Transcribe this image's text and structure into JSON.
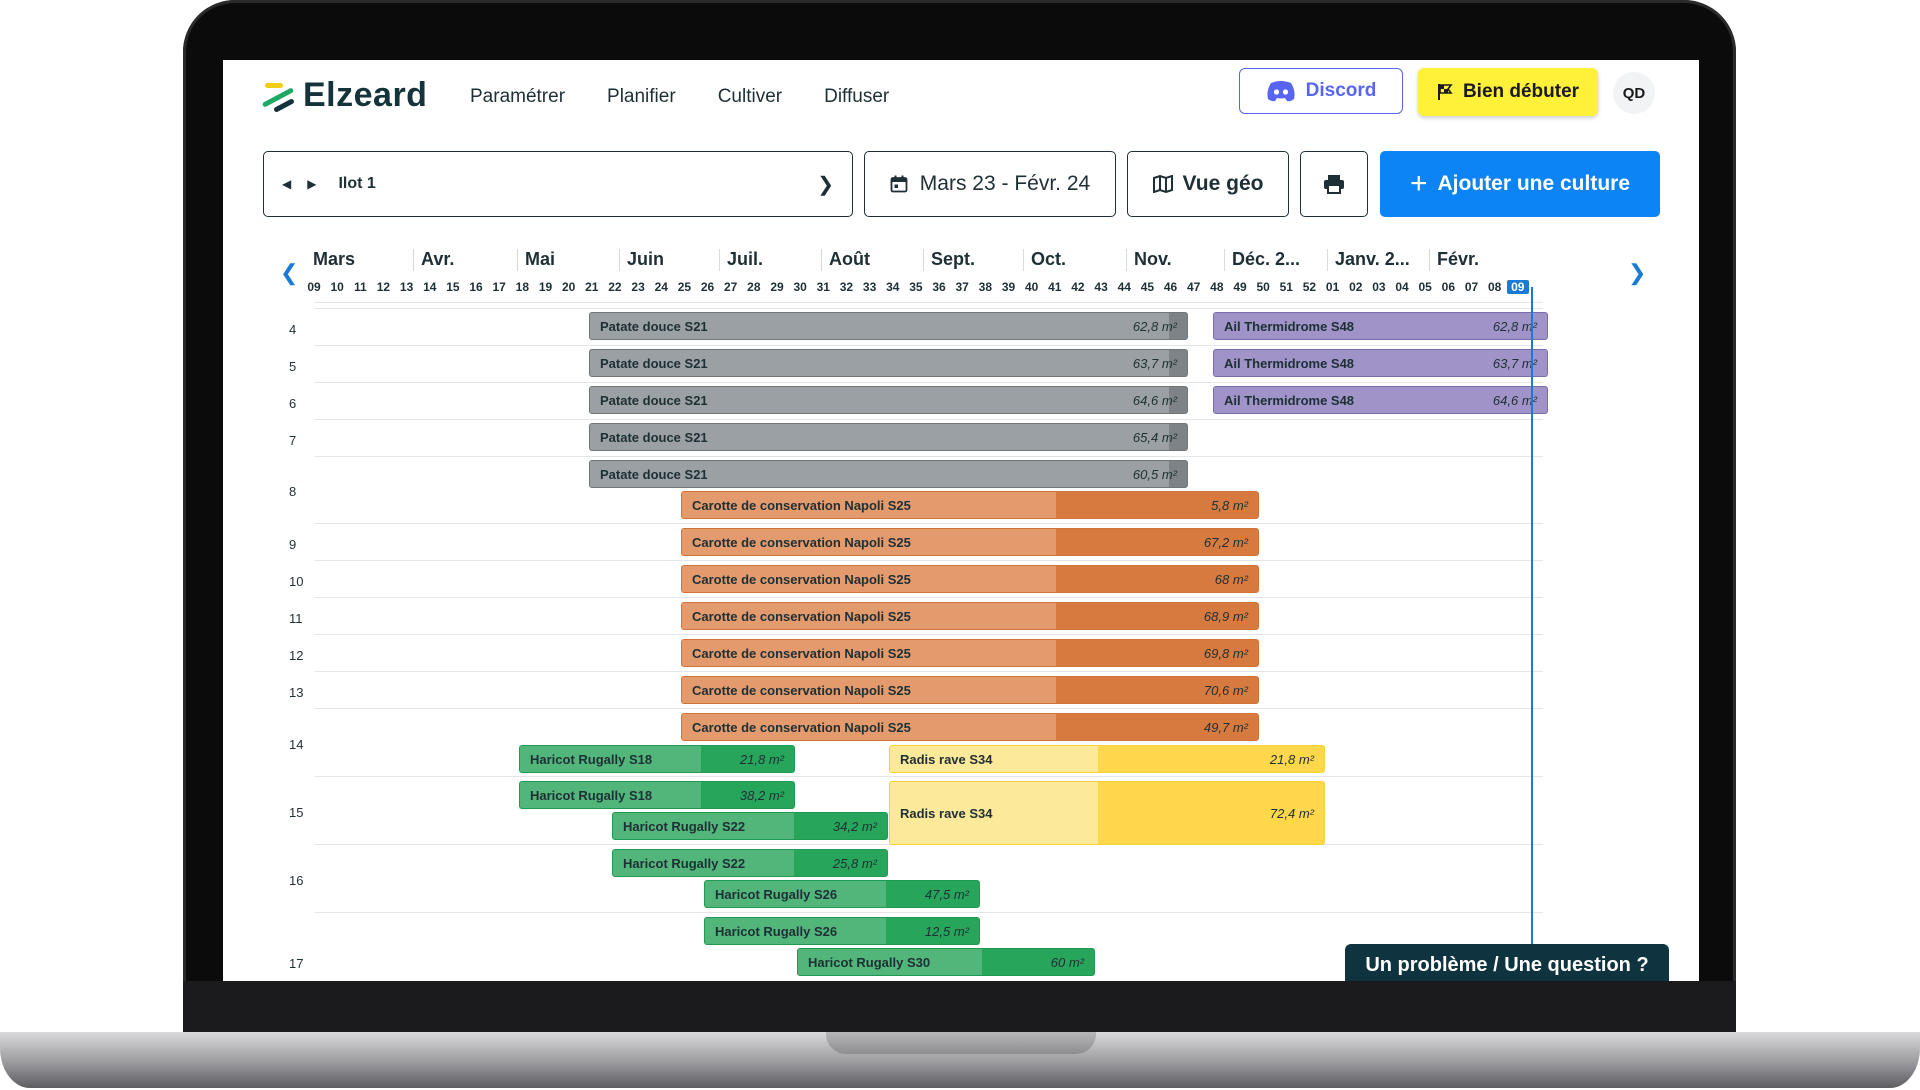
{
  "app": {
    "logo_text": "Elzeard",
    "colors": {
      "primary": "#0c84f5",
      "dark": "#14333a",
      "discord": "#5865f2",
      "yellow": "#fff13a"
    }
  },
  "nav": {
    "items": [
      {
        "label": "Paramétrer"
      },
      {
        "label": "Planifier"
      },
      {
        "label": "Cultiver"
      },
      {
        "label": "Diffuser"
      }
    ]
  },
  "header_actions": {
    "discord_label": "Discord",
    "start_label": "Bien débuter",
    "avatar_initials": "QD"
  },
  "toolbar": {
    "ilot_label": "Ilot 1",
    "date_range": "Mars 23 - Févr. 24",
    "geo_view_label": "Vue géo",
    "add_culture_label": "Ajouter une culture"
  },
  "timeline": {
    "months": [
      "Mars",
      "Avr.",
      "Mai",
      "Juin",
      "Juil.",
      "Août",
      "Sept.",
      "Oct.",
      "Nov.",
      "Déc. 2...",
      "Janv. 2...",
      "Févr."
    ],
    "weeks": [
      "09",
      "10",
      "11",
      "12",
      "13",
      "14",
      "15",
      "16",
      "17",
      "18",
      "19",
      "20",
      "21",
      "22",
      "23",
      "24",
      "25",
      "26",
      "27",
      "28",
      "29",
      "30",
      "31",
      "32",
      "33",
      "34",
      "35",
      "36",
      "37",
      "38",
      "39",
      "40",
      "41",
      "42",
      "43",
      "44",
      "45",
      "46",
      "47",
      "48",
      "49",
      "50",
      "51",
      "52",
      "01",
      "02",
      "03",
      "04",
      "05",
      "06",
      "07",
      "08",
      "09"
    ],
    "current_week_index": 52,
    "rows": [
      "4",
      "5",
      "6",
      "7",
      "8",
      "9",
      "10",
      "11",
      "12",
      "13",
      "14",
      "15",
      "16",
      "17"
    ],
    "crops": [
      {
        "name": "Patate douce S21",
        "area": "62,8 m²",
        "color": "grey"
      },
      {
        "name": "Patate douce S21",
        "area": "63,7 m²",
        "color": "grey"
      },
      {
        "name": "Patate douce S21",
        "area": "64,6 m²",
        "color": "grey"
      },
      {
        "name": "Patate douce S21",
        "area": "65,4 m²",
        "color": "grey"
      },
      {
        "name": "Patate douce S21",
        "area": "60,5 m²",
        "color": "grey"
      },
      {
        "name": "Ail Thermidrome S48",
        "area": "62,8 m²",
        "color": "purple"
      },
      {
        "name": "Ail Thermidrome S48",
        "area": "63,7 m²",
        "color": "purple"
      },
      {
        "name": "Ail Thermidrome S48",
        "area": "64,6 m²",
        "color": "purple"
      },
      {
        "name": "Carotte de conservation Napoli S25",
        "area": "5,8 m²",
        "color": "orange"
      },
      {
        "name": "Carotte de conservation Napoli S25",
        "area": "67,2 m²",
        "color": "orange"
      },
      {
        "name": "Carotte de conservation Napoli S25",
        "area": "68 m²",
        "color": "orange"
      },
      {
        "name": "Carotte de conservation Napoli S25",
        "area": "68,9 m²",
        "color": "orange"
      },
      {
        "name": "Carotte de conservation Napoli S25",
        "area": "69,8 m²",
        "color": "orange"
      },
      {
        "name": "Carotte de conservation Napoli S25",
        "area": "70,6 m²",
        "color": "orange"
      },
      {
        "name": "Carotte de conservation Napoli S25",
        "area": "49,7 m²",
        "color": "orange"
      },
      {
        "name": "Haricot Rugally S18",
        "area": "21,8 m²",
        "color": "green"
      },
      {
        "name": "Haricot Rugally S18",
        "area": "38,2 m²",
        "color": "green"
      },
      {
        "name": "Haricot Rugally S22",
        "area": "34,2 m²",
        "color": "green"
      },
      {
        "name": "Haricot Rugally S22",
        "area": "25,8 m²",
        "color": "green"
      },
      {
        "name": "Haricot Rugally S26",
        "area": "47,5 m²",
        "color": "green"
      },
      {
        "name": "Haricot Rugally S26",
        "area": "12,5 m²",
        "color": "green"
      },
      {
        "name": "Haricot Rugally S30",
        "area": "60 m²",
        "color": "green"
      },
      {
        "name": "Radis rave S34",
        "area": "21,8 m²",
        "color": "yellow"
      },
      {
        "name": "Radis rave S34",
        "area": "72,4 m²",
        "color": "yellow"
      }
    ]
  },
  "help": {
    "label": "Un problème / Une question ?"
  }
}
